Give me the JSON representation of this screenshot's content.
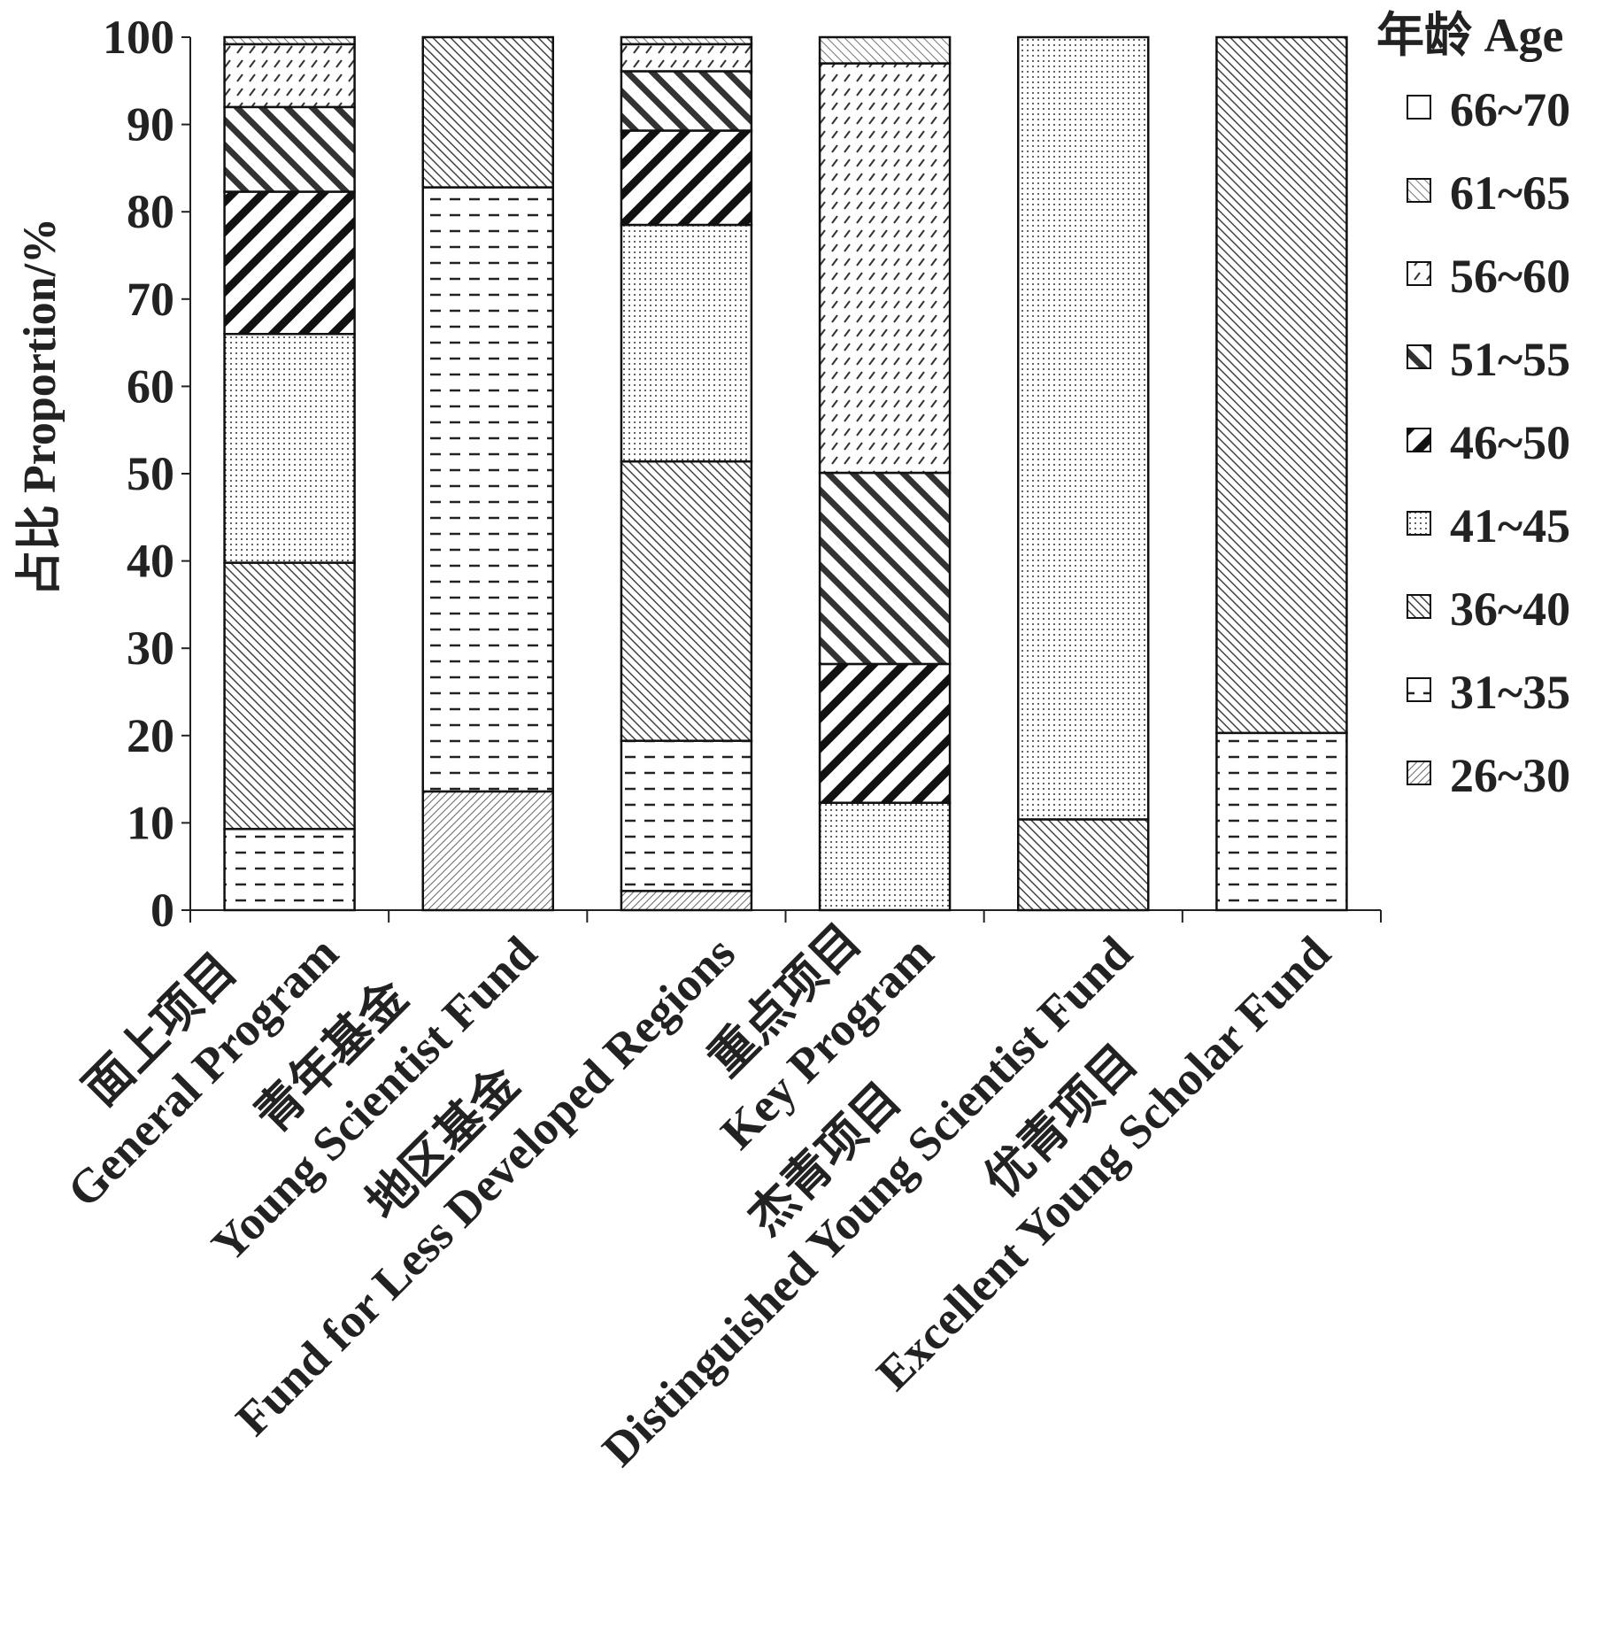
{
  "chart_data": {
    "type": "bar",
    "stacked": true,
    "title": "",
    "xlabel": "",
    "ylabel": "占比 Proportion/%",
    "ylim": [
      0,
      100
    ],
    "yticks": [
      0,
      10,
      20,
      30,
      40,
      50,
      60,
      70,
      80,
      90,
      100
    ],
    "legend_title": "年龄 Age",
    "legend_placement": "right",
    "categories": [
      {
        "zh": "面上项目",
        "en": "General Program"
      },
      {
        "zh": "青年基金",
        "en": "Young Scientist Fund"
      },
      {
        "zh": "地区基金",
        "en": "Fund for Less Developed Regions"
      },
      {
        "zh": "重点项目",
        "en": "Key Program"
      },
      {
        "zh": "杰青项目",
        "en": "Distinguished Young Scientist Fund"
      },
      {
        "zh": "优青项目",
        "en": "Excellent Young Scholar Fund"
      }
    ],
    "series": [
      {
        "name": "26~30",
        "values": [
          0,
          13.6,
          2.2,
          0,
          0,
          0
        ]
      },
      {
        "name": "31~35",
        "values": [
          9.3,
          69.2,
          17.2,
          0,
          0,
          20.3
        ]
      },
      {
        "name": "36~40",
        "values": [
          30.5,
          17.2,
          32.0,
          0,
          10.4,
          79.7
        ]
      },
      {
        "name": "41~45",
        "values": [
          26.2,
          0,
          27.1,
          12.3,
          89.6,
          0
        ]
      },
      {
        "name": "46~50",
        "values": [
          16.3,
          0,
          10.8,
          15.9,
          0,
          0
        ]
      },
      {
        "name": "51~55",
        "values": [
          9.7,
          0,
          6.8,
          21.9,
          0,
          0
        ]
      },
      {
        "name": "56~60",
        "values": [
          7.2,
          0,
          3.1,
          46.9,
          0,
          0
        ]
      },
      {
        "name": "61~65",
        "values": [
          0.8,
          0,
          0.8,
          3.0,
          0,
          0
        ]
      },
      {
        "name": "66~70",
        "values": [
          0,
          0,
          0,
          0,
          0,
          0
        ]
      }
    ]
  }
}
